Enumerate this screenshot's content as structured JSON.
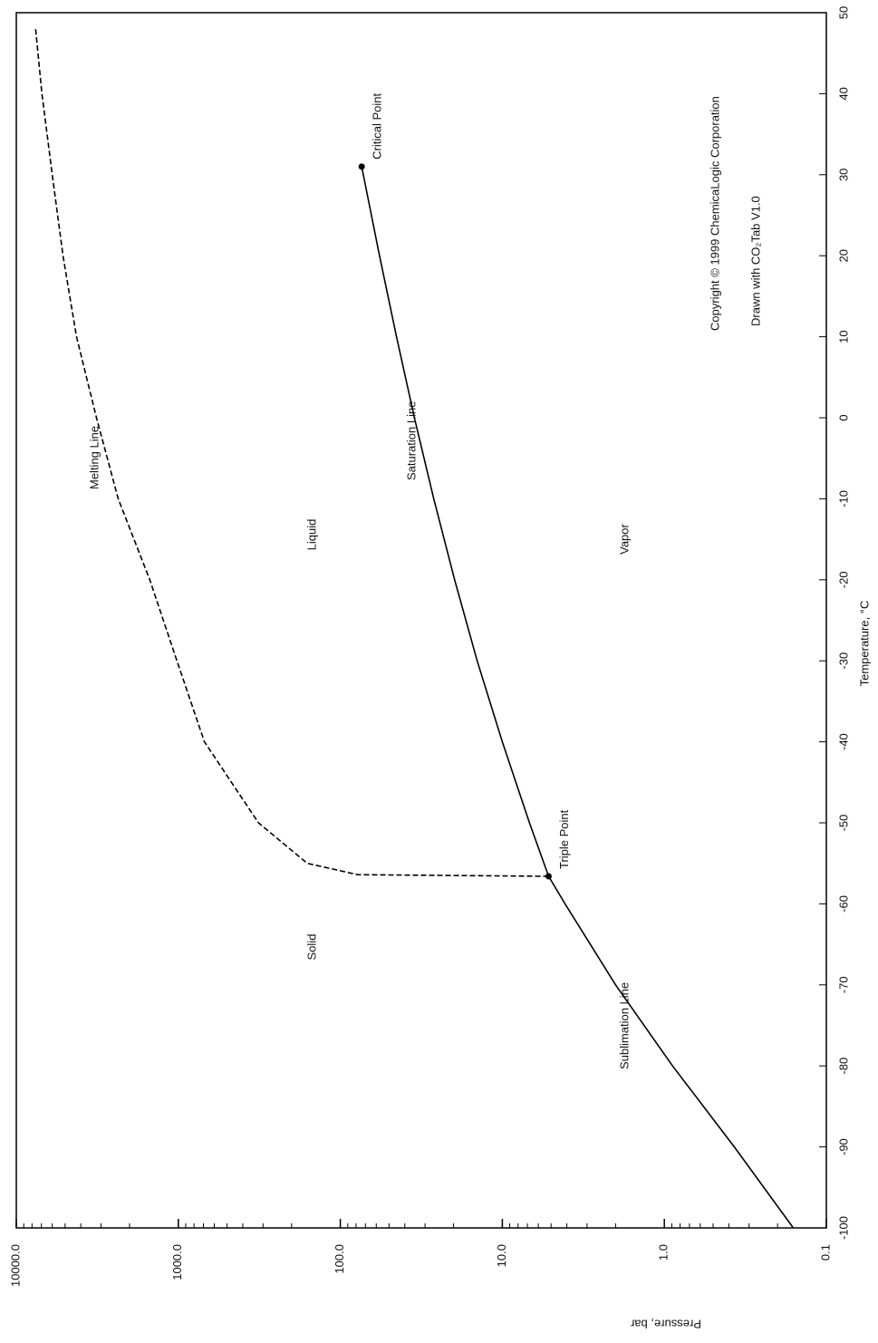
{
  "chart_data": {
    "type": "line",
    "x_label": "Temperature, °C",
    "y_label": "Pressure, bar",
    "xlim": [
      -100,
      50
    ],
    "xticks": [
      -100,
      -90,
      -80,
      -70,
      -60,
      -50,
      -40,
      -30,
      -20,
      -10,
      0,
      10,
      20,
      30,
      40,
      50
    ],
    "ylim": [
      0.1,
      10000
    ],
    "yticks": [
      0.1,
      {
        "value": 1,
        "label": "1.0"
      },
      {
        "value": 10,
        "label": "10.0"
      },
      {
        "value": 100,
        "label": "100.0"
      },
      {
        "value": 1000,
        "label": "1000.0"
      },
      {
        "value": 10000,
        "label": "10000.0"
      }
    ],
    "log_y": true,
    "series": [
      {
        "name": "Sublimation Line",
        "color": "#000000",
        "dash": false,
        "x": [
          -100,
          -90,
          -80,
          -70,
          -60,
          -56.6
        ],
        "values": [
          0.16,
          0.37,
          0.89,
          2.0,
          4.1,
          5.18
        ]
      },
      {
        "name": "Saturation Line",
        "color": "#000000",
        "dash": false,
        "x": [
          -56.6,
          -50,
          -40,
          -30,
          -20,
          -10,
          0,
          10,
          20,
          31
        ],
        "values": [
          5.18,
          6.8,
          10.0,
          14.3,
          19.7,
          26.5,
          34.9,
          45.0,
          57.3,
          73.8
        ]
      },
      {
        "name": "Melting Line",
        "color": "#000000",
        "dash": true,
        "x": [
          -56.6,
          -56.4,
          -55,
          -50,
          -40,
          -30,
          -20,
          -10,
          0,
          10,
          20,
          30,
          40,
          48
        ],
        "values": [
          5.18,
          78,
          160,
          320,
          690,
          1020,
          1500,
          2350,
          3200,
          4250,
          5150,
          6000,
          6950,
          7600
        ]
      }
    ],
    "points": [
      {
        "label": "Triple Point",
        "x": -56.6,
        "y": 5.18
      },
      {
        "label": "Critical Point",
        "x": 31,
        "y": 73.8
      }
    ],
    "regions": [
      "Solid",
      "Liquid",
      "Vapor"
    ],
    "credits": [
      "Copyright © 1999 ChemicaLogic Corporation",
      "Drawn with CO₂Tab V1.0"
    ]
  }
}
